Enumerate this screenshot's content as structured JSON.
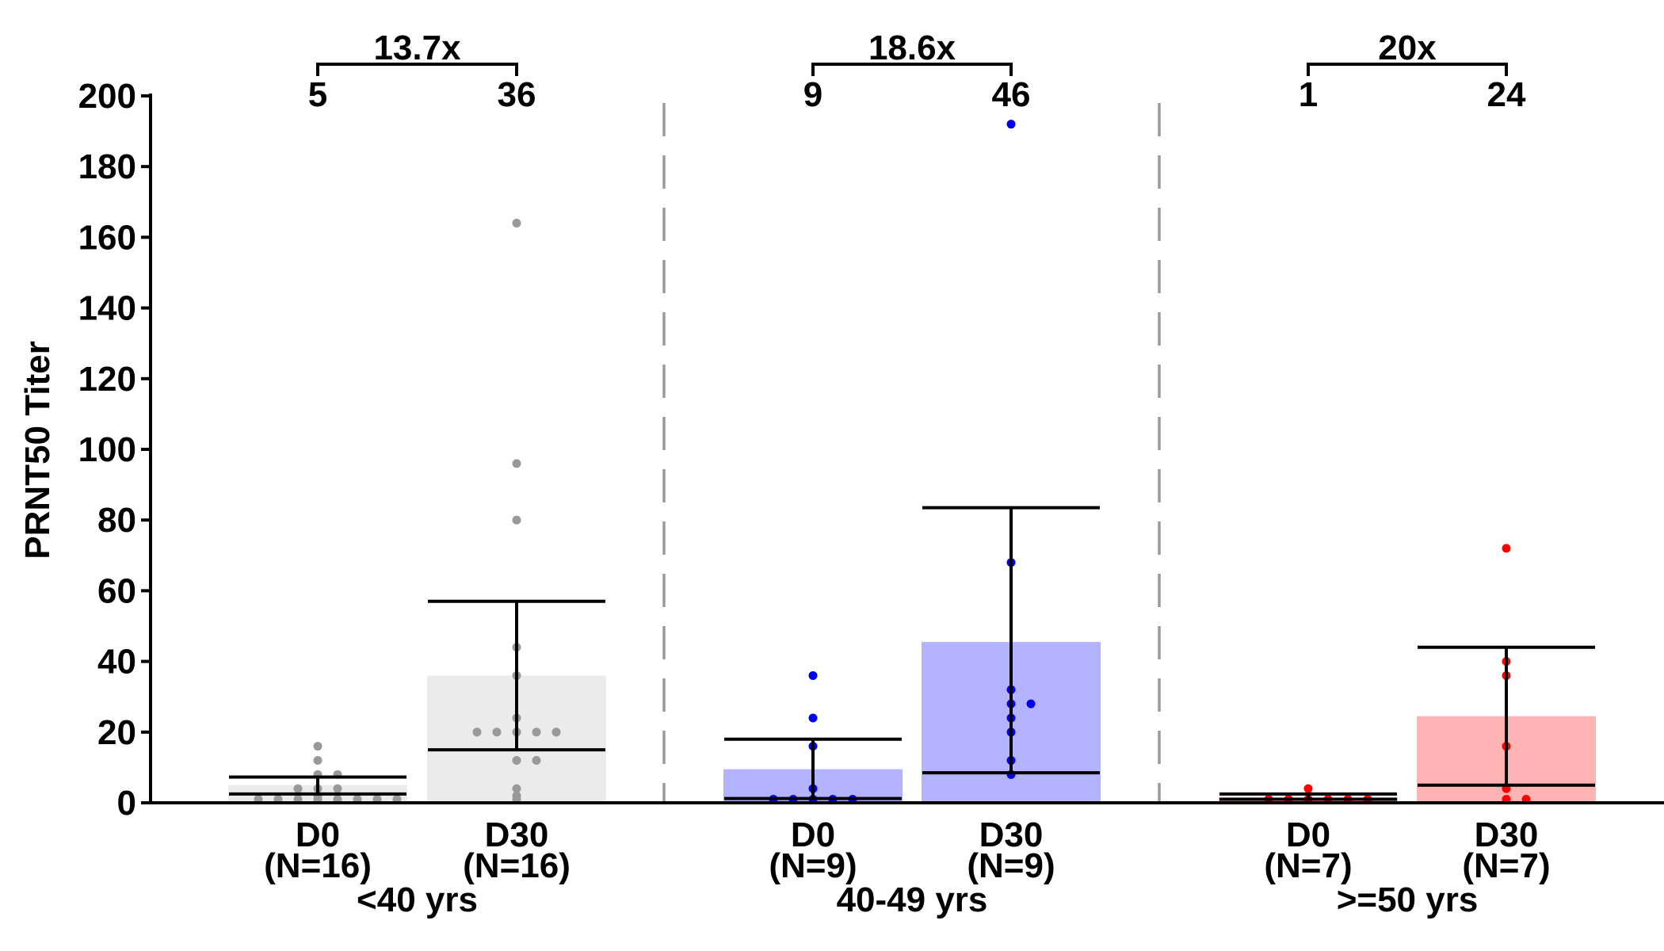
{
  "chart_data": {
    "type": "bar",
    "title": "",
    "ylabel": "PRNT50 Titer",
    "ylim": [
      0,
      200
    ],
    "yticks": [
      "0",
      "20",
      "40",
      "60",
      "80",
      "100",
      "120",
      "140",
      "160",
      "180",
      "200"
    ],
    "grid": false,
    "legend": "none",
    "groups": [
      {
        "name": "<40 yrs",
        "color": "#999999",
        "bar_fill": "#ebebeb",
        "fold_label": "13.7x",
        "bars": [
          {
            "label": "D0",
            "n_label": "(N=16)",
            "top_label": "5",
            "mean": 5,
            "median": 2.5,
            "error_low": 2.5,
            "error_high": 7.3,
            "points": [
              1,
              1,
              1,
              1,
              1,
              1,
              1,
              1,
              2,
              4,
              4,
              4,
              8,
              8,
              12,
              16
            ]
          },
          {
            "label": "D30",
            "n_label": "(N=16)",
            "top_label": "36",
            "mean": 36,
            "median": 15,
            "error_low": 15,
            "error_high": 57,
            "points": [
              1,
              4,
              12,
              12,
              20,
              20,
              20,
              20,
              20,
              24,
              36,
              44,
              80,
              96,
              164,
              2
            ]
          }
        ]
      },
      {
        "name": "40-49 yrs",
        "color": "#0000ee",
        "bar_fill": "#b3b3ff",
        "fold_label": "18.6x",
        "bars": [
          {
            "label": "D0",
            "n_label": "(N=9)",
            "top_label": "9",
            "mean": 9.5,
            "median": 1.2,
            "error_low": 1.2,
            "error_high": 18,
            "points": [
              1,
              1,
              1,
              1,
              1,
              4,
              16,
              24,
              36
            ]
          },
          {
            "label": "D30",
            "n_label": "(N=9)",
            "top_label": "46",
            "mean": 45.5,
            "median": 8.5,
            "error_low": 8.5,
            "error_high": 83.5,
            "points": [
              8,
              12,
              20,
              24,
              28,
              28,
              32,
              68,
              192
            ]
          }
        ]
      },
      {
        "name": ">=50 yrs",
        "color": "#ff0000",
        "bar_fill": "#ffb3b3",
        "fold_label": "20x",
        "bars": [
          {
            "label": "D0",
            "n_label": "(N=7)",
            "top_label": "1",
            "mean": 1.5,
            "median": 1,
            "error_low": 1,
            "error_high": 2.5,
            "points": [
              1,
              1,
              1,
              1,
              1,
              1,
              4
            ]
          },
          {
            "label": "D30",
            "n_label": "(N=7)",
            "top_label": "24",
            "mean": 24.5,
            "median": 5,
            "error_low": 5,
            "error_high": 44,
            "points": [
              1,
              1,
              4,
              16,
              36,
              40,
              72
            ]
          }
        ]
      }
    ]
  }
}
